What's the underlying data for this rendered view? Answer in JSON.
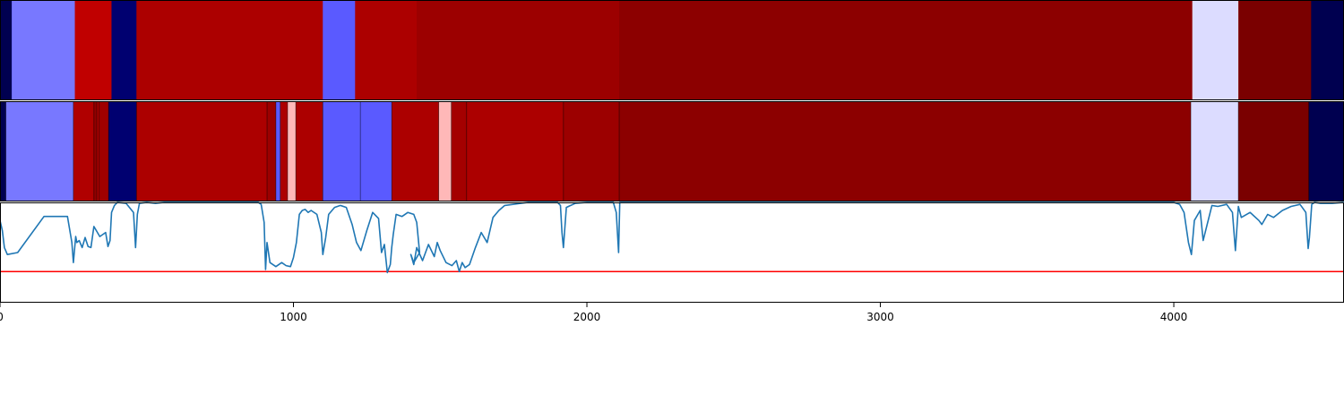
{
  "chart_data": [
    {
      "type": "heatmap",
      "panel": "top-segment-bar",
      "xlim": [
        0,
        4580
      ],
      "segments": [
        {
          "start": 0,
          "end": 40,
          "color": "#000050"
        },
        {
          "start": 40,
          "end": 255,
          "color": "#7878ff"
        },
        {
          "start": 255,
          "end": 380,
          "color": "#c00000"
        },
        {
          "start": 380,
          "end": 465,
          "color": "#000070"
        },
        {
          "start": 465,
          "end": 1100,
          "color": "#ac0000"
        },
        {
          "start": 1100,
          "end": 1210,
          "color": "#5a5aff"
        },
        {
          "start": 1210,
          "end": 1420,
          "color": "#ac0000"
        },
        {
          "start": 1420,
          "end": 2110,
          "color": "#9c0000"
        },
        {
          "start": 2110,
          "end": 4063,
          "color": "#8c0000"
        },
        {
          "start": 4063,
          "end": 4220,
          "color": "#dcdcff"
        },
        {
          "start": 4220,
          "end": 4468,
          "color": "#7a0000"
        },
        {
          "start": 4468,
          "end": 4580,
          "color": "#000050"
        }
      ]
    },
    {
      "type": "heatmap",
      "panel": "middle-segment-bar",
      "xlim": [
        0,
        4580
      ],
      "segments": [
        {
          "start": 0,
          "end": 20,
          "color": "#000050"
        },
        {
          "start": 20,
          "end": 250,
          "color": "#7878ff"
        },
        {
          "start": 250,
          "end": 320,
          "color": "#b00000"
        },
        {
          "start": 320,
          "end": 330,
          "color": "#900000"
        },
        {
          "start": 330,
          "end": 338,
          "color": "#b00000"
        },
        {
          "start": 338,
          "end": 370,
          "color": "#a00000"
        },
        {
          "start": 370,
          "end": 465,
          "color": "#000070"
        },
        {
          "start": 465,
          "end": 910,
          "color": "#ac0000"
        },
        {
          "start": 910,
          "end": 940,
          "color": "#9c0000"
        },
        {
          "start": 940,
          "end": 955,
          "color": "#5a5aff"
        },
        {
          "start": 955,
          "end": 980,
          "color": "#ac0000"
        },
        {
          "start": 980,
          "end": 1008,
          "color": "#ffb8b8"
        },
        {
          "start": 1008,
          "end": 1100,
          "color": "#ac0000"
        },
        {
          "start": 1100,
          "end": 1228,
          "color": "#5a5aff"
        },
        {
          "start": 1228,
          "end": 1335,
          "color": "#5a5aff"
        },
        {
          "start": 1335,
          "end": 1495,
          "color": "#ac0000"
        },
        {
          "start": 1495,
          "end": 1538,
          "color": "#ffb8b8"
        },
        {
          "start": 1538,
          "end": 1590,
          "color": "#a40000"
        },
        {
          "start": 1590,
          "end": 1920,
          "color": "#ac0000"
        },
        {
          "start": 1920,
          "end": 2110,
          "color": "#9c0000"
        },
        {
          "start": 2110,
          "end": 4058,
          "color": "#8c0000"
        },
        {
          "start": 4058,
          "end": 4220,
          "color": "#dcdcff"
        },
        {
          "start": 4220,
          "end": 4460,
          "color": "#7a0000"
        },
        {
          "start": 4460,
          "end": 4580,
          "color": "#000050"
        }
      ]
    },
    {
      "type": "line",
      "panel": "bottom-signal",
      "xlim": [
        0,
        4580
      ],
      "ylim": [
        0,
        1
      ],
      "x_ticks": [
        0,
        1000,
        2000,
        3000,
        4000
      ],
      "x_tick_labels": [
        "0",
        "1000",
        "2000",
        "3000",
        "4000"
      ],
      "threshold": 0.31,
      "threshold_color": "#ff0000",
      "line_color": "#1f77b4",
      "series": [
        {
          "x": [
            0,
            8,
            15,
            25,
            60,
            150,
            230,
            245,
            250,
            258,
            262,
            270,
            280,
            290,
            300,
            310,
            320,
            340,
            360,
            368,
            375,
            380,
            390,
            400,
            430,
            455,
            462,
            468,
            475,
            500,
            530,
            560,
            600,
            700,
            800,
            880,
            890,
            900,
            905,
            910,
            920,
            940,
            960,
            975,
            990,
            1000,
            1010,
            1020,
            1030,
            1040,
            1050,
            1060,
            1080,
            1095,
            1100,
            1110,
            1120,
            1140,
            1160,
            1180,
            1200,
            1215,
            1230,
            1250,
            1270,
            1290,
            1300,
            1310,
            1320,
            1330,
            1335,
            1340,
            1350,
            1370,
            1390,
            1410,
            1420,
            1430,
            1410,
            1400,
            1410,
            1420,
            1440,
            1460,
            1480,
            1490,
            1500,
            1520,
            1540,
            1555,
            1565,
            1575,
            1585,
            1600,
            1620,
            1640,
            1660,
            1680,
            1700,
            1720,
            1800,
            1870,
            1900,
            1910,
            1915,
            1920,
            1930,
            1960,
            2000,
            2050,
            2090,
            2100,
            2108,
            2112,
            2120,
            2150,
            2500,
            3000,
            3500,
            4000,
            4020,
            4035,
            4050,
            4060,
            4070,
            4090,
            4100,
            4130,
            4150,
            4180,
            4200,
            4210,
            4220,
            4230,
            4260,
            4290,
            4300,
            4320,
            4340,
            4370,
            4400,
            4430,
            4450,
            4458,
            4462,
            4470,
            4480,
            4500,
            4540,
            4580
          ],
          "y": [
            0.82,
            0.72,
            0.55,
            0.48,
            0.5,
            0.86,
            0.86,
            0.6,
            0.4,
            0.66,
            0.6,
            0.62,
            0.55,
            0.65,
            0.56,
            0.55,
            0.76,
            0.66,
            0.7,
            0.56,
            0.62,
            0.9,
            0.97,
            1.0,
            0.99,
            0.9,
            0.55,
            0.88,
            0.99,
            1.0,
            0.99,
            1.0,
            1.0,
            1.0,
            1.0,
            1.0,
            0.98,
            0.8,
            0.33,
            0.6,
            0.4,
            0.36,
            0.4,
            0.37,
            0.36,
            0.45,
            0.6,
            0.88,
            0.92,
            0.93,
            0.9,
            0.92,
            0.88,
            0.7,
            0.48,
            0.65,
            0.88,
            0.95,
            0.97,
            0.95,
            0.78,
            0.6,
            0.52,
            0.72,
            0.9,
            0.84,
            0.5,
            0.58,
            0.3,
            0.38,
            0.55,
            0.68,
            0.88,
            0.86,
            0.9,
            0.88,
            0.8,
            0.5,
            0.4,
            0.48,
            0.38,
            0.55,
            0.42,
            0.58,
            0.46,
            0.6,
            0.52,
            0.4,
            0.37,
            0.42,
            0.31,
            0.4,
            0.35,
            0.38,
            0.55,
            0.7,
            0.6,
            0.85,
            0.92,
            0.97,
            1.0,
            1.0,
            1.0,
            0.97,
            0.7,
            0.55,
            0.95,
            0.99,
            1.0,
            1.0,
            1.0,
            0.9,
            0.5,
            1.0,
            1.0,
            1.0,
            1.0,
            1.0,
            1.0,
            1.0,
            0.98,
            0.9,
            0.6,
            0.48,
            0.82,
            0.92,
            0.62,
            0.97,
            0.96,
            0.98,
            0.9,
            0.52,
            0.96,
            0.85,
            0.9,
            0.82,
            0.78,
            0.88,
            0.85,
            0.92,
            0.96,
            0.98,
            0.9,
            0.54,
            0.65,
            0.98,
            1.0,
            0.99,
            0.99,
            1.0
          ]
        }
      ]
    }
  ]
}
